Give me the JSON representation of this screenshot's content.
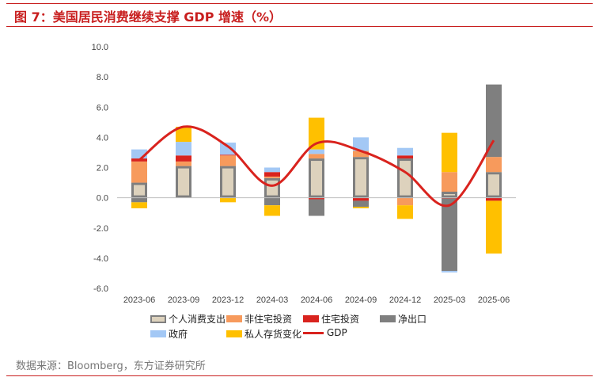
{
  "header": {
    "title": "图 7：美国居民消费继续支撑 GDP 增速（%）"
  },
  "footer": {
    "source": "数据来源：Bloomberg，东方证券研究所"
  },
  "colors": {
    "consumption": "#ddd2bd",
    "consumption_border": "#7f7f7f",
    "nonres": "#f79a5c",
    "housing": "#d9231e",
    "netexports": "#7f7f7f",
    "government": "#a3c8f5",
    "inventory": "#ffc000",
    "gdp": "#d9231e"
  },
  "chart_data": {
    "type": "bar",
    "stacked": true,
    "categories": [
      "2023-06",
      "2023-09",
      "2023-12",
      "2024-03",
      "2024-06",
      "2024-09",
      "2024-12",
      "2025-03",
      "2025-06"
    ],
    "ylim": [
      -6,
      10
    ],
    "yticks": [
      "10.0",
      "8.0",
      "6.0",
      "4.0",
      "2.0",
      "0.0",
      "-2.0",
      "-4.0",
      "-6.0"
    ],
    "series": [
      {
        "name": "个人消费支出",
        "key": "consumption",
        "values": [
          1.0,
          2.1,
          2.1,
          1.3,
          2.6,
          2.7,
          2.6,
          0.4,
          1.7
        ]
      },
      {
        "name": "非住宅投资",
        "key": "nonres",
        "values": [
          1.4,
          0.3,
          0.7,
          0.1,
          0.3,
          0.4,
          -0.5,
          1.3,
          1.0
        ]
      },
      {
        "name": "住宅投资",
        "key": "housing",
        "values": [
          0.2,
          0.4,
          0.05,
          0.3,
          -0.1,
          -0.2,
          0.2,
          -0.05,
          -0.2
        ]
      },
      {
        "name": "净出口",
        "key": "netexports",
        "values": [
          -0.3,
          0.0,
          0.0,
          -0.5,
          -1.1,
          -0.4,
          0.0,
          -4.8,
          4.8
        ]
      },
      {
        "name": "政府",
        "key": "government",
        "values": [
          0.6,
          0.9,
          0.8,
          0.3,
          0.3,
          0.9,
          0.5,
          -0.1,
          0.0
        ]
      },
      {
        "name": "私人存货变化",
        "key": "inventory",
        "values": [
          -0.4,
          1.0,
          -0.3,
          -0.7,
          2.1,
          -0.1,
          -0.9,
          2.6,
          -3.5
        ]
      }
    ],
    "line": {
      "name": "GDP",
      "key": "gdp",
      "values": [
        2.5,
        4.7,
        3.4,
        0.8,
        3.6,
        3.1,
        1.7,
        -0.5,
        3.8
      ]
    },
    "legend_placement": "bottom"
  }
}
